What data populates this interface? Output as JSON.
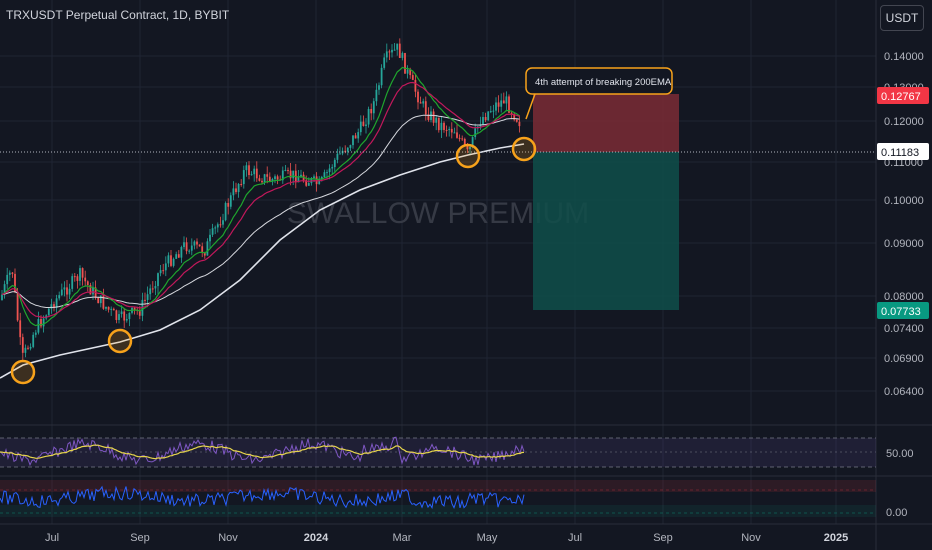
{
  "header": {
    "symbol": "TRXUSDT Perpetual Contract, 1D, BYBIT",
    "currency": "USDT"
  },
  "watermark": "SWALLOW PREMIUM",
  "annotation": "4th attempt of breaking 200EMA",
  "price_axis": {
    "ticks": [
      "0.14000",
      "0.13000",
      "0.12000",
      "0.11000",
      "0.10000",
      "0.09000",
      "0.08000",
      "0.07400",
      "0.06900",
      "0.06400"
    ],
    "badges": {
      "stop": "0.12767",
      "entry": "0.11183",
      "target": "0.07733"
    }
  },
  "time_axis": [
    "Jul",
    "Sep",
    "Nov",
    "2024",
    "Mar",
    "May",
    "Jul",
    "Sep",
    "Nov",
    "2025"
  ],
  "rsi_panel": {
    "label": "50.00"
  },
  "osc_panel": {
    "label": "0.00"
  },
  "colors": {
    "background": "#131722",
    "up_candle": "#26a69a",
    "down_candle": "#ef5350",
    "ema_fast": "#1fa62e",
    "ema_mid": "#c2185b",
    "ema_200": "#e0e3eb",
    "circle": "#f7a21b",
    "stop_zone": "#7b2c35",
    "target_zone": "#0f4f4a",
    "rsi_line": "#7e57c2",
    "rsi_ma": "#e7d54c",
    "osc_line": "#2962ff"
  }
}
